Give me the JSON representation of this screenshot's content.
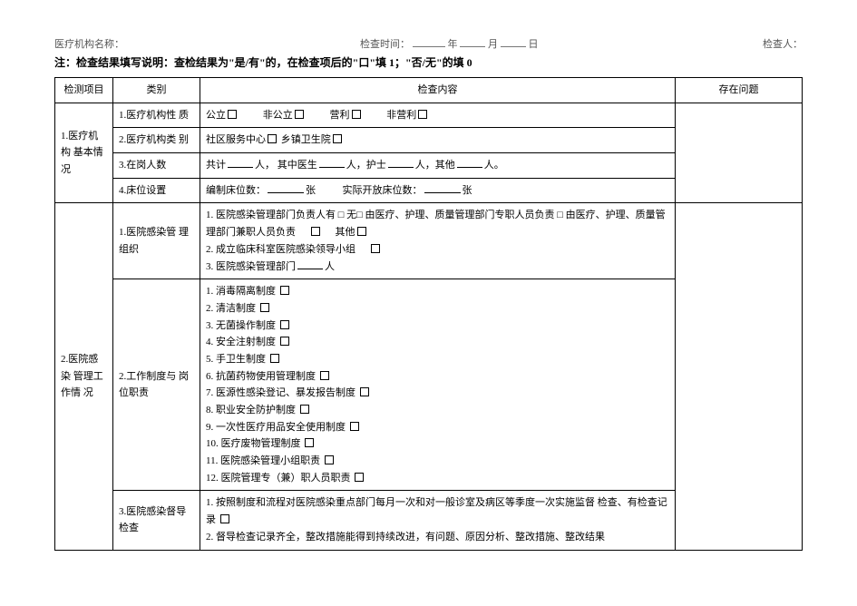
{
  "header": {
    "org_label": "医疗机构名称：",
    "time_label": "检查时间：",
    "year_suffix": "年",
    "month_suffix": "月",
    "day_suffix": "日",
    "inspector_label": "检查人："
  },
  "note": "注：检查结果填写说明：查检结果为\"是/有\"的，在检查项后的\"口\"填 1；\"否/无\"的填 0",
  "th": {
    "col1": "检测项目",
    "col2": "类别",
    "col3": "检查内容",
    "col4": "存在问题"
  },
  "s1": {
    "title": "1.医疗机构 基本情况",
    "r1_cat": "1.医疗机构性 质",
    "r1_opts": [
      "公立",
      "非公立",
      "营利",
      "非营利"
    ],
    "r2_cat": "2.医疗机构类 别",
    "r2_opts": [
      "社区服务中心",
      "乡镇卫生院"
    ],
    "r3_cat": "3.在岗人数",
    "r3_parts": {
      "total": "共计",
      "unit": "人，",
      "mid": "其中医生",
      "nurse": "人，护士",
      "other": "人，其他",
      "tail": "人。"
    },
    "r4_cat": "4.床位设置",
    "r4_parts": {
      "a": "编制床位数：",
      "unit": "张",
      "b": "实际开放床位数："
    }
  },
  "s2": {
    "title": "2.医院感染 管理工作情 况",
    "r1_cat": "1.医院感染管 理组织",
    "r1_lines": [
      "1. 医院感染管理部门负责人有 □ 无□ 由医疗、护理、质量管理部门专职人员负责 □ 由医疗、护理、质量管理部门兼职人员负责",
      "2. 成立临床科室医院感染领导小组",
      "3. 医院感染管理部门"
    ],
    "r1_other": "其他",
    "r1_people": "人",
    "r2_cat": "2.工作制度与 岗位职责",
    "r2_items": [
      "1. 消毒隔离制度",
      "2. 清洁制度",
      "3. 无菌操作制度",
      "4. 安全注射制度",
      "5. 手卫生制度",
      "6. 抗菌药物使用管理制度",
      "7. 医源性感染登记、暴发报告制度",
      "8. 职业安全防护制度",
      "9. 一次性医疗用品安全使用制度",
      "10. 医疗废物管理制度",
      "11. 医院感染管理小组职责",
      "12. 医院管理专（兼）职人员职责"
    ],
    "r3_cat": "3.医院感染督导检查",
    "r3_line1_a": "1. 按照制度和流程对医院感染重点部门每月一次和对一般诊室及病区等季度一次实施监督 检查、有检查记录",
    "r3_line2": "2. 督导检查记录齐全，整改措施能得到持续改进，有问题、原因分析、整改措施、整改结果"
  }
}
